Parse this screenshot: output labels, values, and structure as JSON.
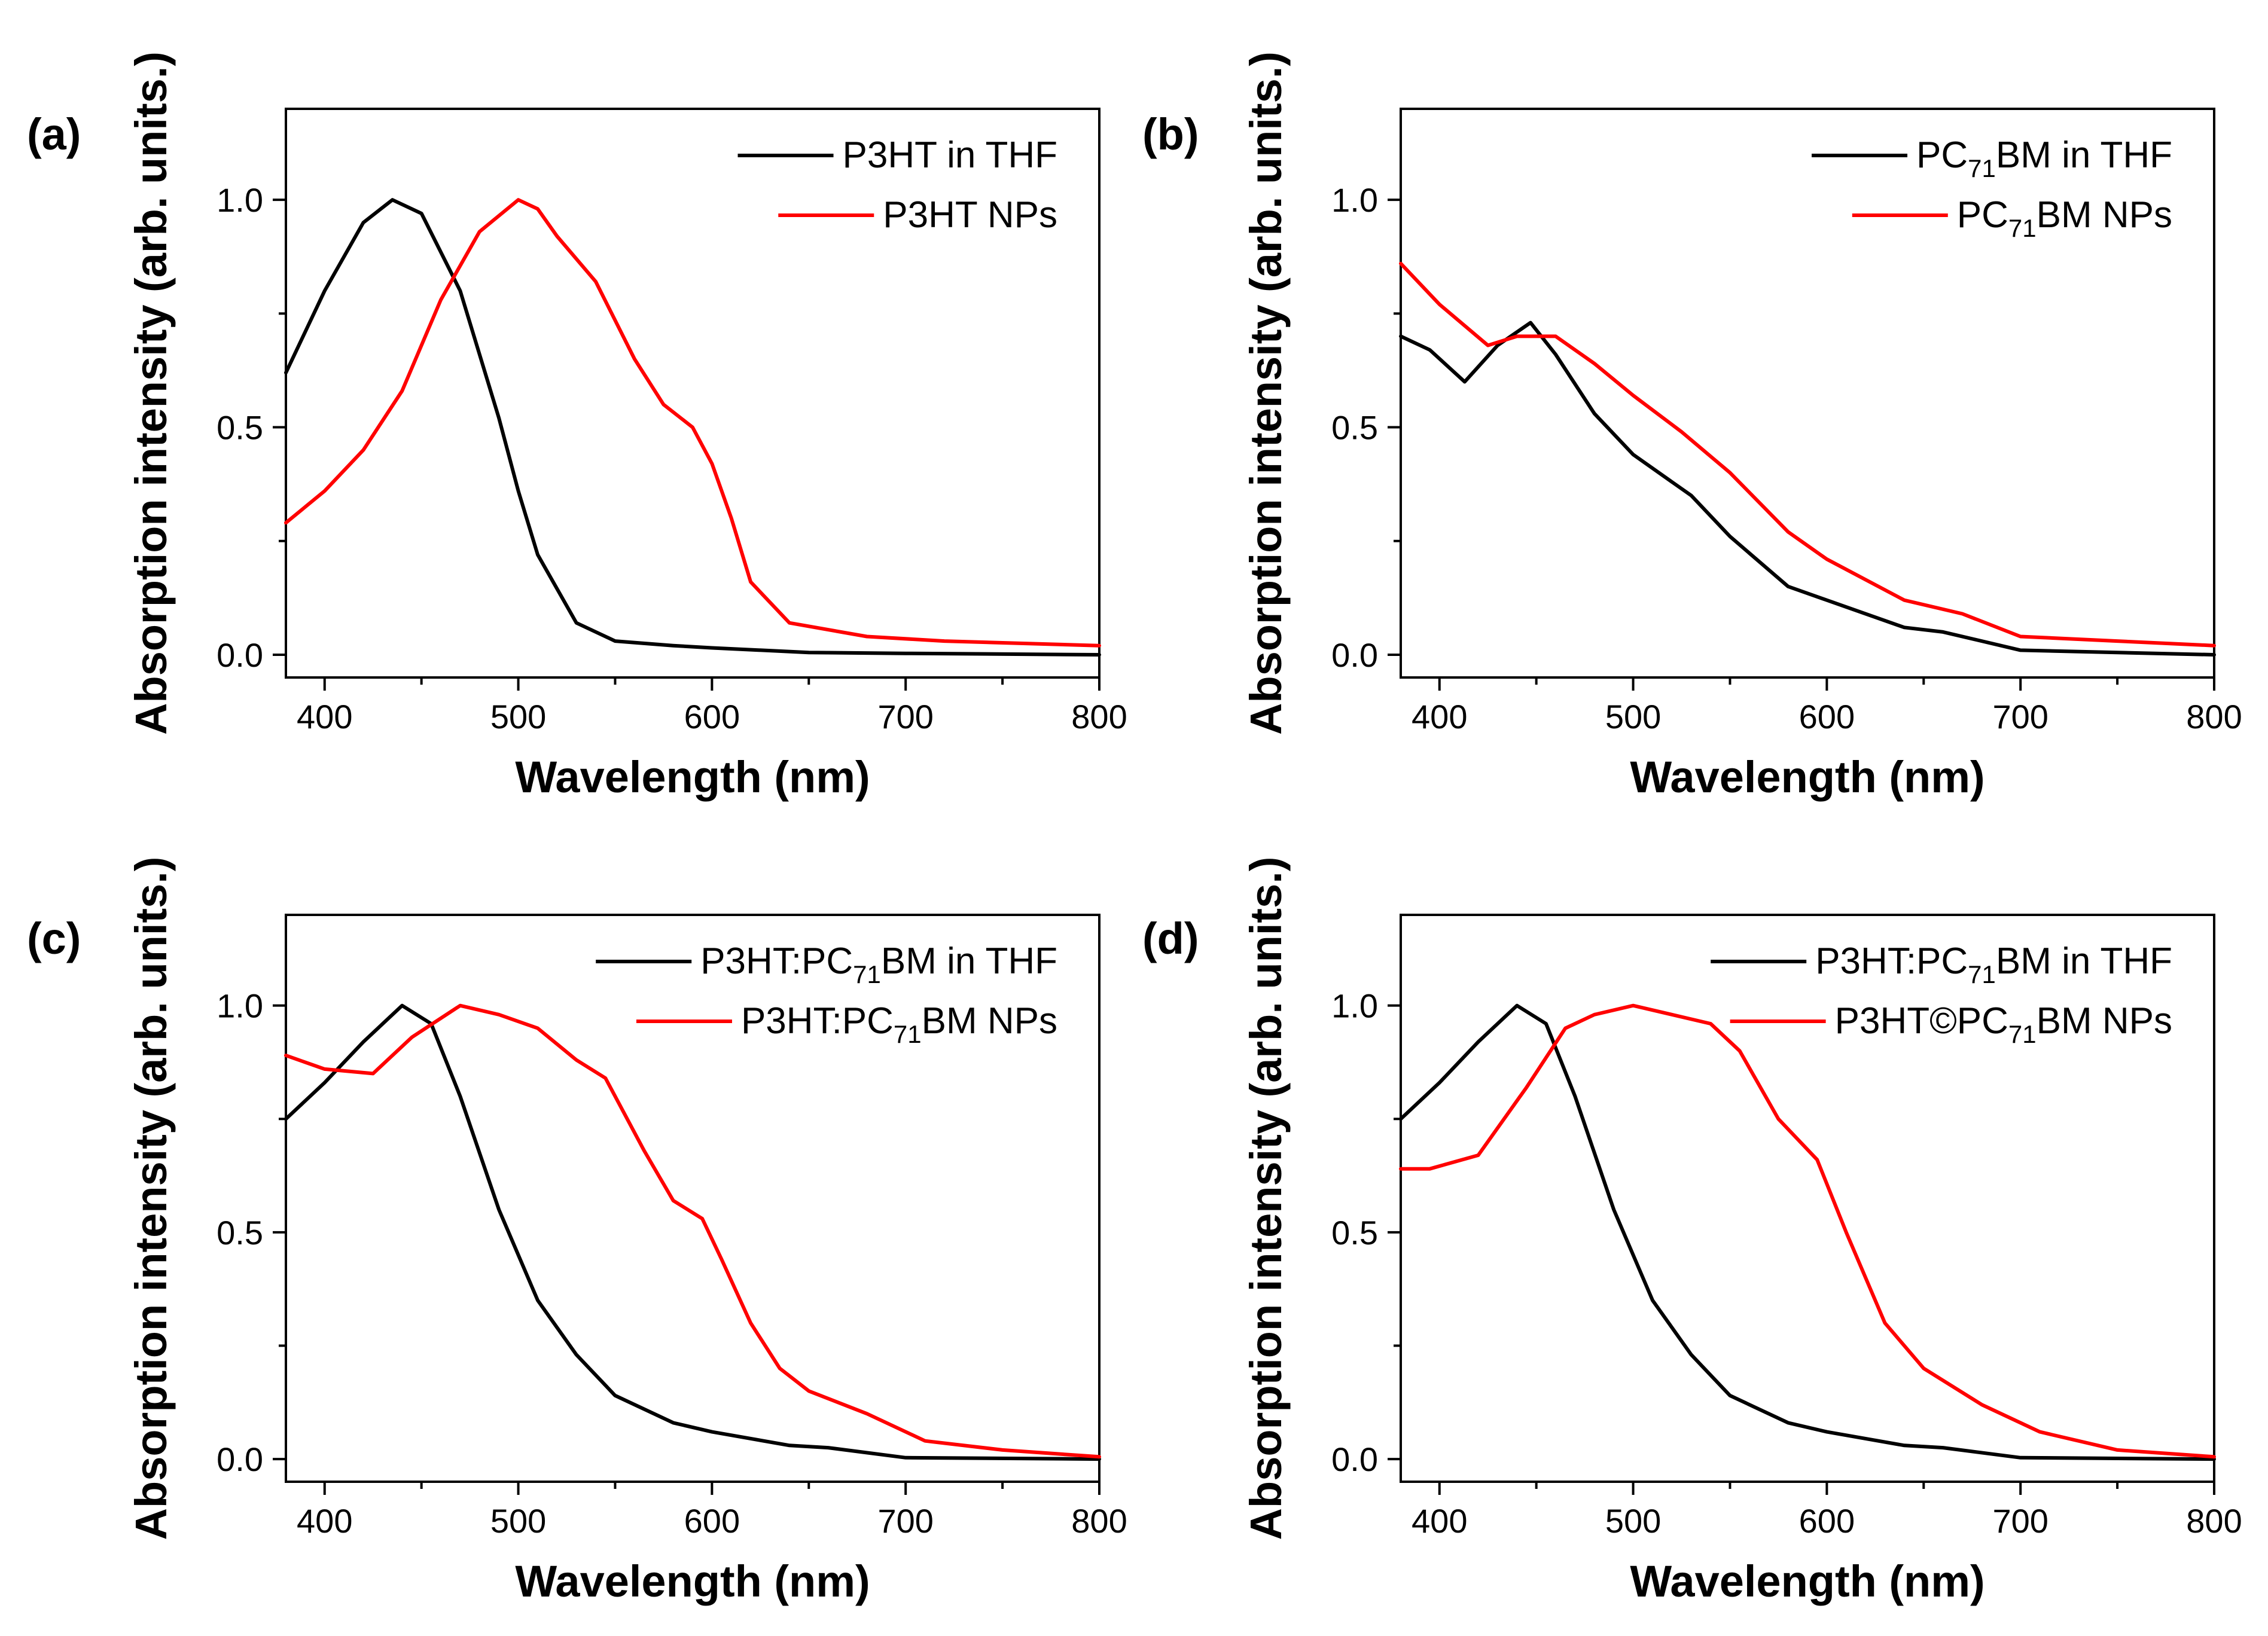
{
  "chart_data": [
    {
      "type": "line",
      "panel_label": "(a)",
      "xlabel": "Wavelength (nm)",
      "ylabel": "Absorption intensity (arb. units.)",
      "xlim": [
        380,
        800
      ],
      "ylim": [
        -0.05,
        1.2
      ],
      "xticks": [
        "400",
        "500",
        "600",
        "700",
        "800"
      ],
      "yticks": [
        "0.0",
        "0.5",
        "1.0"
      ],
      "legend_position": "top-right",
      "series": [
        {
          "name": "P3HT in THF",
          "color": "#000000",
          "legend": {
            "base": "P3HT in THF",
            "sub": "",
            "rest": ""
          },
          "x": [
            380,
            400,
            420,
            435,
            450,
            470,
            490,
            500,
            510,
            530,
            550,
            580,
            600,
            650,
            700,
            800
          ],
          "y": [
            0.62,
            0.8,
            0.95,
            1.0,
            0.97,
            0.8,
            0.52,
            0.36,
            0.22,
            0.07,
            0.03,
            0.02,
            0.015,
            0.005,
            0.003,
            0.0
          ]
        },
        {
          "name": "P3HT NPs",
          "color": "#ff0000",
          "legend": {
            "base": "P3HT NPs",
            "sub": "",
            "rest": ""
          },
          "x": [
            380,
            400,
            420,
            440,
            460,
            480,
            500,
            510,
            520,
            540,
            560,
            575,
            590,
            600,
            610,
            620,
            640,
            680,
            720,
            800
          ],
          "y": [
            0.29,
            0.36,
            0.45,
            0.58,
            0.78,
            0.93,
            1.0,
            0.98,
            0.92,
            0.82,
            0.65,
            0.55,
            0.5,
            0.42,
            0.3,
            0.16,
            0.07,
            0.04,
            0.03,
            0.02
          ]
        }
      ]
    },
    {
      "type": "line",
      "panel_label": "(b)",
      "xlabel": "Wavelength (nm)",
      "ylabel": "Absorption intensity (arb. units.)",
      "xlim": [
        380,
        800
      ],
      "ylim": [
        -0.05,
        1.2
      ],
      "xticks": [
        "400",
        "500",
        "600",
        "700",
        "800"
      ],
      "yticks": [
        "0.0",
        "0.5",
        "1.0"
      ],
      "legend_position": "top-right",
      "series": [
        {
          "name": "PC71BM in THF",
          "color": "#000000",
          "legend": {
            "base": "PC",
            "sub": "71",
            "rest": "BM in THF"
          },
          "x": [
            380,
            395,
            413,
            430,
            447,
            460,
            480,
            500,
            520,
            530,
            550,
            580,
            600,
            640,
            660,
            700,
            800
          ],
          "y": [
            0.7,
            0.67,
            0.6,
            0.68,
            0.73,
            0.66,
            0.53,
            0.44,
            0.38,
            0.35,
            0.26,
            0.15,
            0.12,
            0.06,
            0.05,
            0.01,
            0.0
          ]
        },
        {
          "name": "PC71BM NPs",
          "color": "#ff0000",
          "legend": {
            "base": "PC",
            "sub": "71",
            "rest": "BM NPs"
          },
          "x": [
            380,
            400,
            425,
            440,
            460,
            480,
            500,
            525,
            550,
            580,
            600,
            640,
            670,
            700,
            750,
            800
          ],
          "y": [
            0.86,
            0.77,
            0.68,
            0.7,
            0.7,
            0.64,
            0.57,
            0.49,
            0.4,
            0.27,
            0.21,
            0.12,
            0.09,
            0.04,
            0.03,
            0.02
          ]
        }
      ]
    },
    {
      "type": "line",
      "panel_label": "(c)",
      "xlabel": "Wavelength (nm)",
      "ylabel": "Absorption intensity (arb. units.)",
      "xlim": [
        380,
        800
      ],
      "ylim": [
        -0.05,
        1.2
      ],
      "xticks": [
        "400",
        "500",
        "600",
        "700",
        "800"
      ],
      "yticks": [
        "0.0",
        "0.5",
        "1.0"
      ],
      "legend_position": "top-right",
      "series": [
        {
          "name": "P3HT:PC71BM in THF",
          "color": "#000000",
          "legend": {
            "base": "P3HT:PC",
            "sub": "71",
            "rest": "BM in THF"
          },
          "x": [
            380,
            400,
            420,
            440,
            455,
            470,
            490,
            510,
            530,
            550,
            580,
            600,
            640,
            660,
            700,
            800
          ],
          "y": [
            0.75,
            0.83,
            0.92,
            1.0,
            0.96,
            0.8,
            0.55,
            0.35,
            0.23,
            0.14,
            0.08,
            0.06,
            0.03,
            0.025,
            0.003,
            0.0
          ]
        },
        {
          "name": "P3HT:PC71BM NPs",
          "color": "#ff0000",
          "legend": {
            "base": "P3HT:PC",
            "sub": "71",
            "rest": "BM NPs"
          },
          "x": [
            380,
            400,
            425,
            445,
            470,
            490,
            510,
            530,
            545,
            565,
            580,
            595,
            605,
            620,
            635,
            650,
            680,
            710,
            750,
            800
          ],
          "y": [
            0.89,
            0.86,
            0.85,
            0.93,
            1.0,
            0.98,
            0.95,
            0.88,
            0.84,
            0.68,
            0.57,
            0.53,
            0.44,
            0.3,
            0.2,
            0.15,
            0.1,
            0.04,
            0.02,
            0.005
          ]
        }
      ]
    },
    {
      "type": "line",
      "panel_label": "(d)",
      "xlabel": "Wavelength (nm)",
      "ylabel": "Absorption intensity (arb. units.)",
      "xlim": [
        380,
        800
      ],
      "ylim": [
        -0.05,
        1.2
      ],
      "xticks": [
        "400",
        "500",
        "600",
        "700",
        "800"
      ],
      "yticks": [
        "0.0",
        "0.5",
        "1.0"
      ],
      "legend_position": "top-right",
      "series": [
        {
          "name": "P3HT:PC71BM in THF",
          "color": "#000000",
          "legend": {
            "base": "P3HT:PC",
            "sub": "71",
            "rest": "BM in THF"
          },
          "x": [
            380,
            400,
            420,
            440,
            455,
            470,
            490,
            510,
            530,
            550,
            580,
            600,
            640,
            660,
            700,
            800
          ],
          "y": [
            0.75,
            0.83,
            0.92,
            1.0,
            0.96,
            0.8,
            0.55,
            0.35,
            0.23,
            0.14,
            0.08,
            0.06,
            0.03,
            0.025,
            0.003,
            0.0
          ]
        },
        {
          "name": "P3HT©PC71BM NPs",
          "color": "#ff0000",
          "legend": {
            "base": "P3HT©PC",
            "sub": "71",
            "rest": "BM NPs"
          },
          "x": [
            380,
            395,
            420,
            445,
            465,
            480,
            500,
            520,
            540,
            555,
            575,
            595,
            610,
            630,
            650,
            680,
            710,
            750,
            800
          ],
          "y": [
            0.64,
            0.64,
            0.67,
            0.82,
            0.95,
            0.98,
            1.0,
            0.98,
            0.96,
            0.9,
            0.75,
            0.66,
            0.5,
            0.3,
            0.2,
            0.12,
            0.06,
            0.02,
            0.005
          ]
        }
      ]
    }
  ]
}
